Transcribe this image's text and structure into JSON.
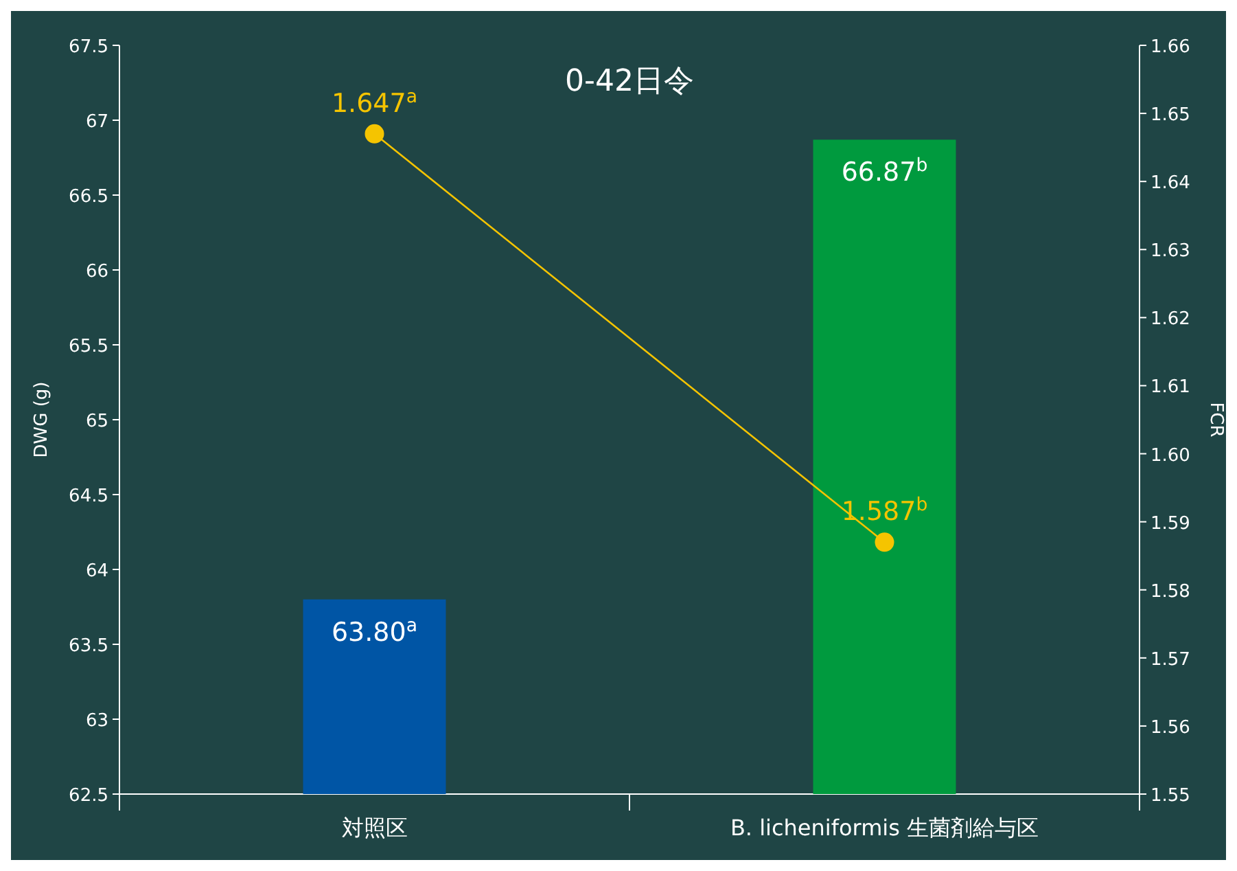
{
  "chart_data": {
    "type": "bar",
    "title": "0-42日令",
    "ylabel": "DWG (g)",
    "y2label": "FCR",
    "categories": [
      "対照区",
      "B. licheniformis 生菌剤給与区"
    ],
    "series": [
      {
        "colors": [
          "#0055a5",
          "#009a3e"
        ],
        "values": [
          63.8,
          66.87
        ],
        "value_labels": [
          "63.80$^{a}$",
          "66.87$^{b}$"
        ]
      },
      {
        "type": "line",
        "axis": "y2",
        "color": "#f5c400",
        "marker": "circle",
        "values": [
          1.647,
          1.587
        ],
        "value_labels": [
          "1.647$^{a}$",
          "1.587$^{b}$"
        ]
      }
    ],
    "ylim": [
      62.5,
      67.5
    ],
    "yticks": [
      62.5,
      63,
      63.5,
      64,
      64.5,
      65,
      65.5,
      66,
      66.5,
      67,
      67.5
    ],
    "y2lim": [
      1.55,
      1.66
    ],
    "y2ticks": [
      1.55,
      1.56,
      1.57,
      1.58,
      1.59,
      {
        "value": 1.6,
        "label": "1.60"
      },
      1.61,
      1.62,
      1.63,
      1.64,
      1.65,
      1.66
    ],
    "grid": false
  }
}
